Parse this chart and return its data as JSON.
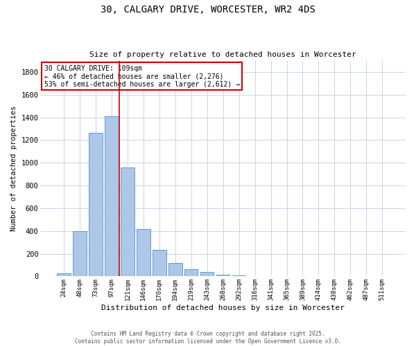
{
  "title_line1": "30, CALGARY DRIVE, WORCESTER, WR2 4DS",
  "title_line2": "Size of property relative to detached houses in Worcester",
  "xlabel": "Distribution of detached houses by size in Worcester",
  "ylabel": "Number of detached properties",
  "categories": [
    "24sqm",
    "48sqm",
    "73sqm",
    "97sqm",
    "121sqm",
    "146sqm",
    "170sqm",
    "194sqm",
    "219sqm",
    "243sqm",
    "268sqm",
    "292sqm",
    "316sqm",
    "341sqm",
    "365sqm",
    "389sqm",
    "414sqm",
    "438sqm",
    "462sqm",
    "487sqm",
    "511sqm"
  ],
  "values": [
    25,
    400,
    1265,
    1410,
    960,
    415,
    235,
    120,
    65,
    40,
    15,
    8,
    5,
    3,
    2,
    1,
    1,
    0,
    0,
    0,
    0
  ],
  "bar_color": "#aec6e8",
  "bar_edge_color": "#5b9bd5",
  "background_color": "#ffffff",
  "grid_color": "#c8d4e8",
  "vline_color": "#cc0000",
  "vline_x": 3.5,
  "annotation_text": "30 CALGARY DRIVE: 109sqm\n← 46% of detached houses are smaller (2,276)\n53% of semi-detached houses are larger (2,612) →",
  "annotation_box_color": "#cc0000",
  "ylim": [
    0,
    1900
  ],
  "yticks": [
    0,
    200,
    400,
    600,
    800,
    1000,
    1200,
    1400,
    1600,
    1800
  ],
  "footer_line1": "Contains HM Land Registry data © Crown copyright and database right 2025.",
  "footer_line2": "Contains public sector information licensed under the Open Government Licence v3.0."
}
